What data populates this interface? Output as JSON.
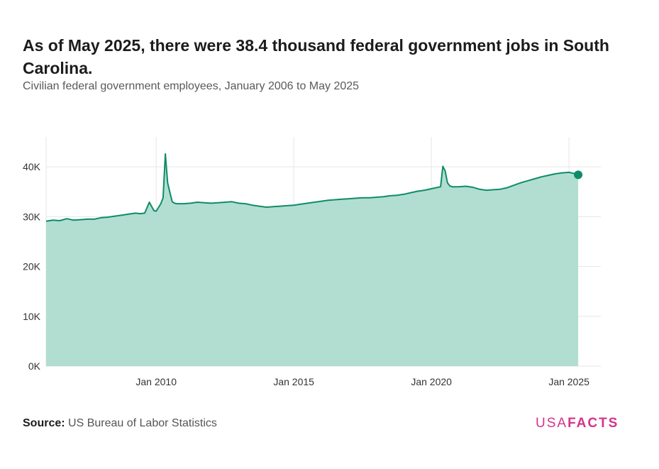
{
  "header": {
    "title": "As of May 2025, there were 38.4 thousand federal government jobs in South Carolina.",
    "subtitle": "Civilian federal government employees, January 2006 to May 2025"
  },
  "footer": {
    "source_label": "Source:",
    "source_text": "US Bureau of Labor Statistics",
    "brand_usa": "USA",
    "brand_facts": "FACTS"
  },
  "colors": {
    "line": "#0f8c67",
    "area": "#b2ded2",
    "grid": "#e6e6e6",
    "brand": "#d6338a"
  },
  "chart_data": {
    "type": "area",
    "title": "As of May 2025, there were 38.4 thousand federal government jobs in South Carolina.",
    "subtitle": "Civilian federal government employees, January 2006 to May 2025",
    "xlabel": "",
    "ylabel": "",
    "xlim": [
      "2006-01",
      "2025-05"
    ],
    "ylim": [
      0,
      46000
    ],
    "yticks": [
      0,
      10000,
      20000,
      30000,
      40000
    ],
    "ytick_labels": [
      "0K",
      "10K",
      "20K",
      "30K",
      "40K"
    ],
    "xticks": [
      "2010-01",
      "2015-01",
      "2020-01",
      "2025-01"
    ],
    "xtick_labels": [
      "Jan 2010",
      "Jan 2015",
      "Jan 2020",
      "Jan 2025"
    ],
    "grid": true,
    "legend": "none",
    "series": [
      {
        "x": [
          "2006-01",
          "2006-04",
          "2006-07",
          "2006-10",
          "2007-01",
          "2007-04",
          "2007-07",
          "2007-10",
          "2008-01",
          "2008-04",
          "2008-07",
          "2008-10",
          "2009-01",
          "2009-04",
          "2009-06",
          "2009-08",
          "2009-10",
          "2009-12",
          "2010-01",
          "2010-03",
          "2010-04",
          "2010-05",
          "2010-06",
          "2010-07",
          "2010-08",
          "2010-09",
          "2010-10",
          "2011-01",
          "2011-04",
          "2011-07",
          "2011-10",
          "2012-01",
          "2012-04",
          "2012-07",
          "2012-10",
          "2013-01",
          "2013-04",
          "2013-07",
          "2013-10",
          "2014-01",
          "2014-04",
          "2014-07",
          "2014-10",
          "2015-01",
          "2015-04",
          "2015-07",
          "2015-10",
          "2016-01",
          "2016-04",
          "2016-07",
          "2016-10",
          "2017-01",
          "2017-04",
          "2017-07",
          "2017-10",
          "2018-01",
          "2018-04",
          "2018-07",
          "2018-10",
          "2019-01",
          "2019-04",
          "2019-07",
          "2019-10",
          "2020-01",
          "2020-03",
          "2020-05",
          "2020-06",
          "2020-07",
          "2020-08",
          "2020-09",
          "2020-10",
          "2021-01",
          "2021-04",
          "2021-07",
          "2021-10",
          "2022-01",
          "2022-04",
          "2022-07",
          "2022-10",
          "2023-01",
          "2023-04",
          "2023-07",
          "2023-10",
          "2024-01",
          "2024-04",
          "2024-07",
          "2024-10",
          "2025-01",
          "2025-03",
          "2025-05"
        ],
        "y": [
          29100,
          29300,
          29200,
          29600,
          29300,
          29400,
          29500,
          29500,
          29800,
          29900,
          30100,
          30300,
          30500,
          30700,
          30600,
          30700,
          32900,
          31200,
          31100,
          32600,
          33800,
          42600,
          36800,
          34800,
          33000,
          32700,
          32600,
          32600,
          32700,
          32900,
          32800,
          32700,
          32800,
          32900,
          33000,
          32700,
          32600,
          32300,
          32100,
          31900,
          32000,
          32100,
          32200,
          32300,
          32500,
          32700,
          32900,
          33100,
          33300,
          33400,
          33500,
          33600,
          33700,
          33800,
          33800,
          33900,
          34000,
          34200,
          34300,
          34500,
          34800,
          35100,
          35300,
          35600,
          35800,
          36000,
          40100,
          39200,
          36800,
          36200,
          36000,
          36000,
          36100,
          35900,
          35500,
          35300,
          35400,
          35500,
          35800,
          36300,
          36800,
          37200,
          37600,
          38000,
          38300,
          38600,
          38800,
          38900,
          38700,
          38400
        ]
      }
    ],
    "annotations": [
      {
        "x": "2025-05",
        "y": 38400,
        "type": "end-point-marker"
      }
    ]
  }
}
